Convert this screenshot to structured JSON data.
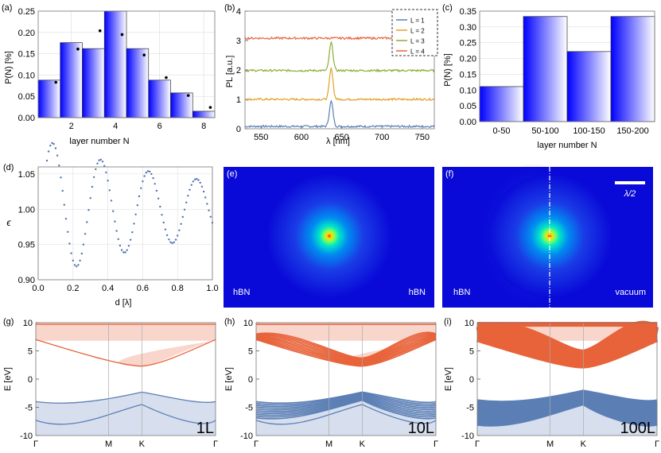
{
  "chart_data": [
    {
      "id": "a",
      "type": "bar",
      "panel_label": "(a)",
      "xlabel": "layer number N",
      "ylabel": "P(N) [%]",
      "x": [
        1,
        2,
        3,
        4,
        5,
        6,
        7,
        8
      ],
      "values": [
        0.088,
        0.176,
        0.162,
        0.25,
        0.162,
        0.088,
        0.058,
        0.015
      ],
      "dots": [
        0.083,
        0.161,
        0.204,
        0.195,
        0.147,
        0.094,
        0.052,
        0.024
      ],
      "xlim": [
        0.5,
        8.5
      ],
      "ylim": [
        0,
        0.25
      ],
      "xticks": [
        "2",
        "4",
        "6",
        "8"
      ],
      "yticks": [
        "0.00",
        "0.05",
        "0.10",
        "0.15",
        "0.20",
        "0.25"
      ]
    },
    {
      "id": "b",
      "type": "line",
      "panel_label": "(b)",
      "xlabel": "λ [nm]",
      "ylabel": "PL [a.u.]",
      "xlim": [
        530,
        765
      ],
      "ylim": [
        0,
        4
      ],
      "xticks": [
        "550",
        "600",
        "650",
        "700",
        "750"
      ],
      "yticks": [
        "0",
        "1",
        "2",
        "3",
        "4"
      ],
      "legend": [
        "L = 1",
        "L = 2",
        "L = 3",
        "L = 4"
      ],
      "series": [
        {
          "name": "L = 1",
          "offset": 0.08,
          "peak": 0.85,
          "color": "#5b7fb5"
        },
        {
          "name": "L = 2",
          "offset": 1.0,
          "peak": 1.05,
          "color": "#e0a12a"
        },
        {
          "name": "L = 3",
          "offset": 1.98,
          "peak": 0.95,
          "color": "#8cad35"
        },
        {
          "name": "L = 4",
          "offset": 3.08,
          "peak": 0.0,
          "color": "#e8633a"
        }
      ],
      "peak_center": 637
    },
    {
      "id": "c",
      "type": "bar",
      "panel_label": "(c)",
      "xlabel": "layer number N",
      "ylabel": "P(N) [%]",
      "categories": [
        "0-50",
        "50-100",
        "100-150",
        "150-200"
      ],
      "values": [
        0.111,
        0.333,
        0.222,
        0.333
      ],
      "ylim": [
        0,
        0.35
      ],
      "yticks": [
        "0.00",
        "0.05",
        "0.10",
        "0.15",
        "0.20",
        "0.25",
        "0.30",
        "0.35"
      ]
    },
    {
      "id": "d",
      "type": "scatter",
      "panel_label": "(d)",
      "xlabel": "d [λ]",
      "ylabel": "ϵ",
      "xlim": [
        0,
        1
      ],
      "ylim": [
        0.9,
        1.06
      ],
      "xticks": [
        "0.0",
        "0.2",
        "0.4",
        "0.6",
        "0.8",
        "1.0"
      ],
      "yticks": [
        "0.90",
        "0.95",
        "1.00",
        "1.05"
      ]
    },
    {
      "id": "e",
      "type": "heatmap",
      "panel_label": "(e)",
      "labels_left": "hBN",
      "labels_right": "hBN"
    },
    {
      "id": "f",
      "type": "heatmap",
      "panel_label": "(f)",
      "labels_left": "hBN",
      "labels_right": "vacuum",
      "scalebar": "λ/2"
    },
    {
      "id": "g",
      "type": "line",
      "panel_label": "(g)",
      "ylabel": "E [eV]",
      "xticks": [
        "Γ",
        "M",
        "K",
        "Γ"
      ],
      "yticks": [
        "10",
        "5",
        "0",
        "-5",
        "-10"
      ],
      "ylim": [
        -10,
        10
      ],
      "tag": "1L",
      "n_bands": 1
    },
    {
      "id": "h",
      "type": "line",
      "panel_label": "(h)",
      "ylabel": "E [eV]",
      "xticks": [
        "Γ",
        "M",
        "K",
        "Γ"
      ],
      "yticks": [
        "10",
        "5",
        "0",
        "-5",
        "-10"
      ],
      "ylim": [
        -10,
        10
      ],
      "tag": "10L",
      "n_bands": 10
    },
    {
      "id": "i",
      "type": "line",
      "panel_label": "(i)",
      "ylabel": "E [eV]",
      "xticks": [
        "Γ",
        "M",
        "K",
        "Γ"
      ],
      "yticks": [
        "10",
        "5",
        "0",
        "-5",
        "-10"
      ],
      "ylim": [
        -10,
        10
      ],
      "tag": "100L",
      "n_bands": 100
    }
  ],
  "colors": {
    "bar_dark": "#0000ff",
    "axis": "#888888",
    "conduction": "#e8633a",
    "conduction_fill": "#f9d6cc",
    "valence": "#5b7fb5",
    "valence_fill": "#d7dfee",
    "field_bg": "#0a0ad8"
  }
}
